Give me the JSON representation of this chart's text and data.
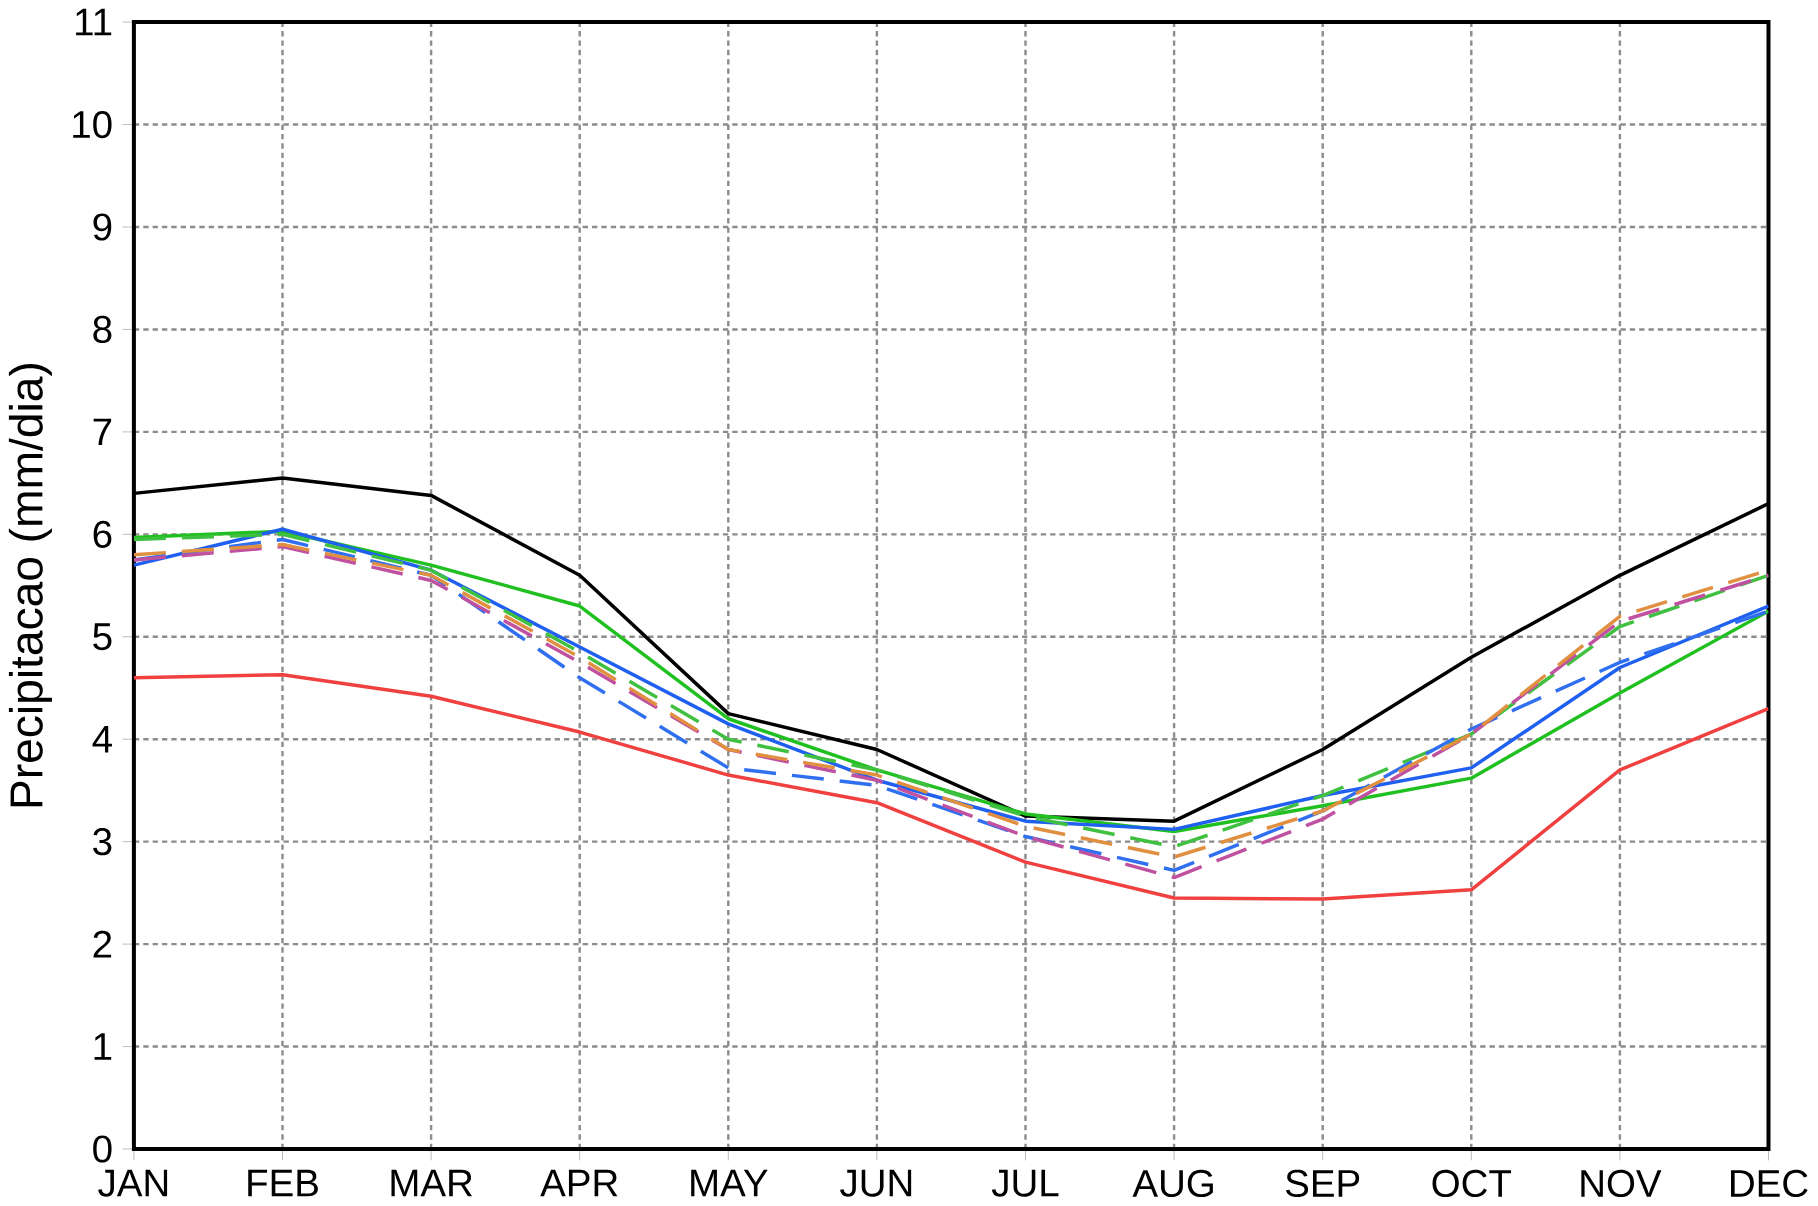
{
  "chart_data": {
    "type": "line",
    "ylabel": "Precipitacao  (mm/dia)",
    "categories": [
      "JAN",
      "FEB",
      "MAR",
      "APR",
      "MAY",
      "JUN",
      "JUL",
      "AUG",
      "SEP",
      "OCT",
      "NOV",
      "DEC"
    ],
    "ylim": [
      0,
      11
    ],
    "yticks": [
      0,
      1,
      2,
      3,
      4,
      5,
      6,
      7,
      8,
      9,
      10,
      11
    ],
    "grid": true,
    "marker": "none",
    "series": [
      {
        "color": "#000000",
        "line_style": "solid",
        "values": [
          6.4,
          6.55,
          6.38,
          5.6,
          4.25,
          3.9,
          3.25,
          3.2,
          3.9,
          4.8,
          5.6,
          6.3
        ]
      },
      {
        "color": "#f04040",
        "line_style": "solid",
        "values": [
          4.6,
          4.63,
          4.42,
          4.07,
          3.65,
          3.38,
          2.8,
          2.45,
          2.44,
          2.53,
          3.7,
          4.3
        ]
      },
      {
        "color": "#20c020",
        "line_style": "solid",
        "values": [
          5.97,
          6.03,
          5.7,
          5.3,
          4.2,
          3.7,
          3.27,
          3.1,
          3.35,
          3.62,
          4.45,
          5.25
        ]
      },
      {
        "color": "#2060f0",
        "line_style": "solid",
        "values": [
          5.7,
          6.05,
          5.65,
          4.9,
          4.15,
          3.6,
          3.2,
          3.12,
          3.45,
          3.72,
          4.7,
          5.3
        ]
      },
      {
        "color": "#40c040",
        "line_style": "dashed",
        "values": [
          5.95,
          6.0,
          5.65,
          4.85,
          4.0,
          3.7,
          3.25,
          2.95,
          3.45,
          4.05,
          5.1,
          5.6
        ]
      },
      {
        "color": "#3070f0",
        "line_style": "dashed",
        "values": [
          5.75,
          5.95,
          5.6,
          4.6,
          3.72,
          3.55,
          3.05,
          2.72,
          3.3,
          4.1,
          4.75,
          5.25
        ]
      },
      {
        "color": "#c050a0",
        "line_style": "dashed",
        "values": [
          5.75,
          5.88,
          5.55,
          4.75,
          3.9,
          3.6,
          3.05,
          2.65,
          3.22,
          4.05,
          5.15,
          5.6
        ]
      },
      {
        "color": "#e09040",
        "line_style": "dashed",
        "values": [
          5.8,
          5.9,
          5.6,
          4.8,
          3.9,
          3.65,
          3.15,
          2.85,
          3.3,
          4.05,
          5.2,
          5.65
        ]
      }
    ]
  }
}
